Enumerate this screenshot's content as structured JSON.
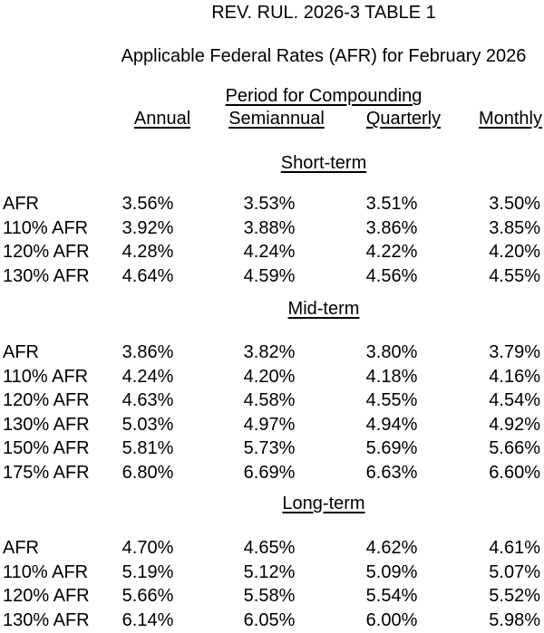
{
  "title": "REV. RUL. 2026-3 TABLE 1",
  "subtitle": "Applicable Federal Rates (AFR) for February 2026",
  "table": {
    "group_header": "Period for Compounding",
    "columns": [
      "Annual",
      "Semiannual",
      "Quarterly",
      "Monthly"
    ],
    "sections": [
      {
        "label": "Short-term",
        "rows": [
          {
            "label": "AFR",
            "values": [
              "3.56%",
              "3.53%",
              "3.51%",
              "3.50%"
            ]
          },
          {
            "label": "110% AFR",
            "values": [
              "3.92%",
              "3.88%",
              "3.86%",
              "3.85%"
            ]
          },
          {
            "label": "120% AFR",
            "values": [
              "4.28%",
              "4.24%",
              "4.22%",
              "4.20%"
            ]
          },
          {
            "label": "130% AFR",
            "values": [
              "4.64%",
              "4.59%",
              "4.56%",
              "4.55%"
            ]
          }
        ]
      },
      {
        "label": "Mid-term",
        "rows": [
          {
            "label": "AFR",
            "values": [
              "3.86%",
              "3.82%",
              "3.80%",
              "3.79%"
            ]
          },
          {
            "label": "110% AFR",
            "values": [
              "4.24%",
              "4.20%",
              "4.18%",
              "4.16%"
            ]
          },
          {
            "label": "120% AFR",
            "values": [
              "4.63%",
              "4.58%",
              "4.55%",
              "4.54%"
            ]
          },
          {
            "label": "130% AFR",
            "values": [
              "5.03%",
              "4.97%",
              "4.94%",
              "4.92%"
            ]
          },
          {
            "label": "150% AFR",
            "values": [
              "5.81%",
              "5.73%",
              "5.69%",
              "5.66%"
            ]
          },
          {
            "label": "175% AFR",
            "values": [
              "6.80%",
              "6.69%",
              "6.63%",
              "6.60%"
            ]
          }
        ]
      },
      {
        "label": "Long-term",
        "rows": [
          {
            "label": "AFR",
            "values": [
              "4.70%",
              "4.65%",
              "4.62%",
              "4.61%"
            ]
          },
          {
            "label": "110% AFR",
            "values": [
              "5.19%",
              "5.12%",
              "5.09%",
              "5.07%"
            ]
          },
          {
            "label": "120% AFR",
            "values": [
              "5.66%",
              "5.58%",
              "5.54%",
              "5.52%"
            ]
          },
          {
            "label": "130% AFR",
            "values": [
              "6.14%",
              "6.05%",
              "6.00%",
              "5.98%"
            ]
          }
        ]
      }
    ]
  },
  "colors": {
    "text": "#000000",
    "background": "#ffffff"
  }
}
